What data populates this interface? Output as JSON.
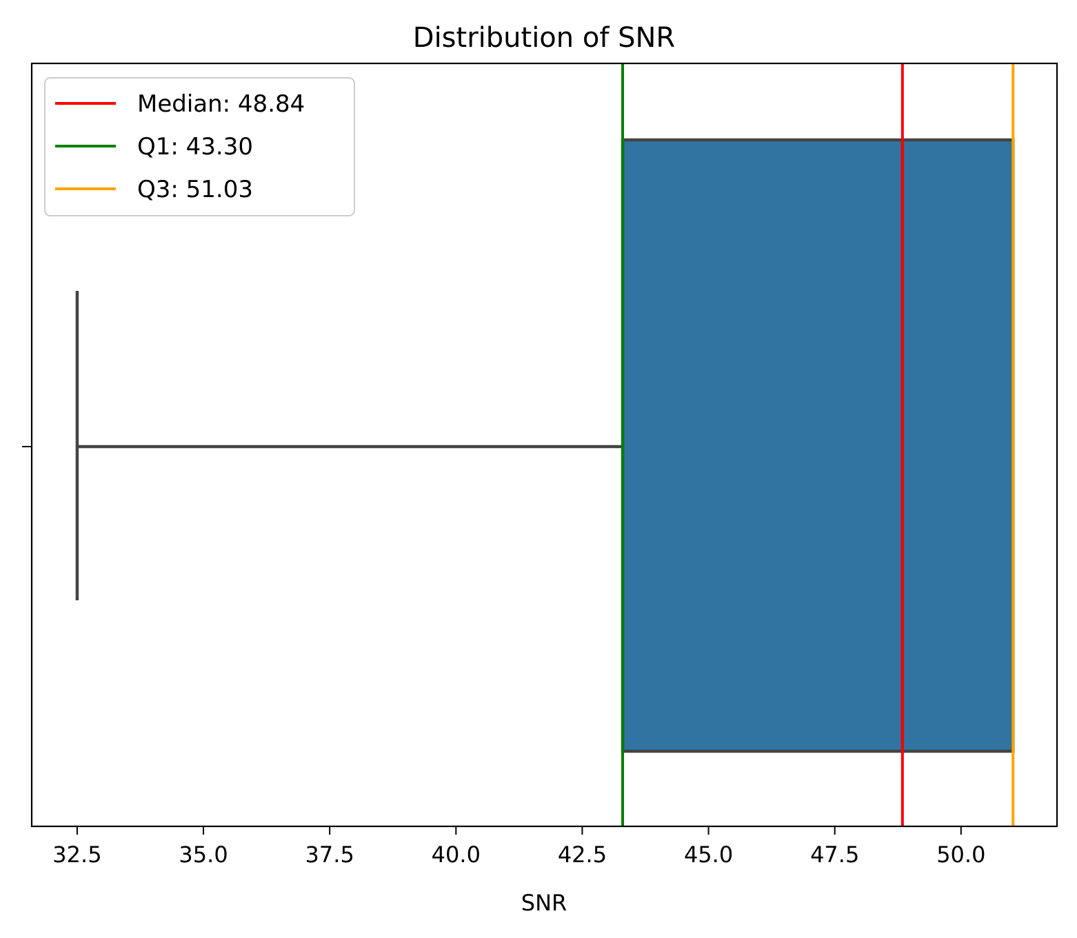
{
  "chart_data": {
    "type": "box",
    "title": "Distribution of SNR",
    "xlabel": "SNR",
    "ylabel": "",
    "xlim": [
      31.6,
      51.9
    ],
    "x_ticks": [
      32.5,
      35.0,
      37.5,
      40.0,
      42.5,
      45.0,
      47.5,
      50.0
    ],
    "x_tick_labels": [
      "32.5",
      "35.0",
      "37.5",
      "40.0",
      "42.5",
      "45.0",
      "47.5",
      "50.0"
    ],
    "grid": false,
    "box": {
      "whisker_low": 32.5,
      "q1": 43.3,
      "median": 48.84,
      "q3": 51.03,
      "whisker_high": 51.03,
      "fill_color": "#3274a1",
      "line_color": "#444444"
    },
    "reference_lines": [
      {
        "label": "Median: 48.84",
        "value": 48.84,
        "color": "#ff0000"
      },
      {
        "label": "Q1: 43.30",
        "value": 43.3,
        "color": "#008000"
      },
      {
        "label": "Q3: 51.03",
        "value": 51.03,
        "color": "#ffa500"
      }
    ],
    "legend_position": "top-left"
  }
}
